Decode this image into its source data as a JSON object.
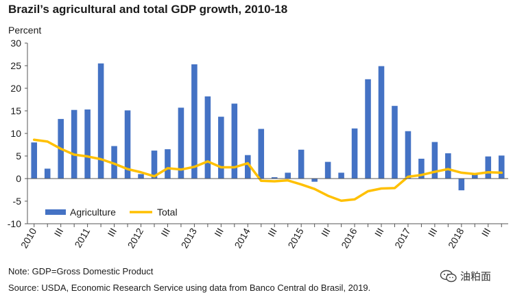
{
  "chart_data": {
    "type": "bar",
    "title": "Brazil’s agricultural and total GDP growth, 2010-18",
    "ylabel": "Percent",
    "xlabel": "",
    "ylim": [
      -10,
      30
    ],
    "yticks": [
      30,
      25,
      20,
      15,
      10,
      5,
      0,
      -5,
      -10
    ],
    "legend_position": "bottom-left",
    "categories": [
      "2010 Q1",
      "2010 Q2",
      "2010 Q3",
      "2010 Q4",
      "2011 Q1",
      "2011 Q2",
      "2011 Q3",
      "2011 Q4",
      "2012 Q1",
      "2012 Q2",
      "2012 Q3",
      "2012 Q4",
      "2013 Q1",
      "2013 Q2",
      "2013 Q3",
      "2013 Q4",
      "2014 Q1",
      "2014 Q2",
      "2014 Q3",
      "2014 Q4",
      "2015 Q1",
      "2015 Q2",
      "2015 Q3",
      "2015 Q4",
      "2016 Q1",
      "2016 Q2",
      "2016 Q3",
      "2016 Q4",
      "2017 Q1",
      "2017 Q2",
      "2017 Q3",
      "2017 Q4",
      "2018 Q1",
      "2018 Q2",
      "2018 Q3",
      "2018 Q4"
    ],
    "tick_labels": [
      "2010",
      "",
      "III",
      "",
      "2011",
      "",
      "III",
      "",
      "2012",
      "",
      "III",
      "",
      "2013",
      "",
      "III",
      "",
      "2014",
      "",
      "III",
      "",
      "2015",
      "",
      "III",
      "",
      "2016",
      "",
      "III",
      "",
      "2017",
      "",
      "III",
      "",
      "2018",
      "",
      "III",
      ""
    ],
    "series": [
      {
        "name": "Agriculture",
        "type": "bar",
        "color": "#4472c4",
        "values": [
          8.0,
          2.2,
          13.2,
          15.2,
          15.3,
          25.5,
          7.2,
          15.1,
          1.0,
          6.2,
          6.5,
          15.7,
          25.3,
          18.2,
          13.7,
          16.6,
          5.2,
          11.0,
          0.3,
          1.3,
          6.4,
          -0.7,
          3.7,
          1.3,
          11.1,
          22.0,
          24.9,
          16.1,
          10.5,
          4.4,
          8.1,
          5.6,
          -2.6,
          1.0,
          4.9,
          5.1
        ]
      },
      {
        "name": "Total",
        "type": "line",
        "color": "#ffc000",
        "values": [
          8.6,
          8.2,
          6.6,
          5.3,
          4.9,
          4.3,
          3.3,
          2.1,
          1.4,
          0.5,
          2.3,
          2.0,
          2.6,
          3.8,
          2.5,
          2.5,
          3.4,
          -0.5,
          -0.6,
          -0.4,
          -1.3,
          -2.3,
          -3.8,
          -4.9,
          -4.6,
          -2.8,
          -2.2,
          -2.1,
          0.4,
          0.8,
          1.5,
          2.1,
          1.3,
          1.0,
          1.4,
          1.3
        ]
      }
    ]
  },
  "note": "Note: GDP=Gross Domestic Product",
  "source": "Source: USDA, Economic Research Service using data from Banco Central do Brasil, 2019.",
  "watermark": {
    "text": "油粕面",
    "icon": "wechat-icon"
  }
}
